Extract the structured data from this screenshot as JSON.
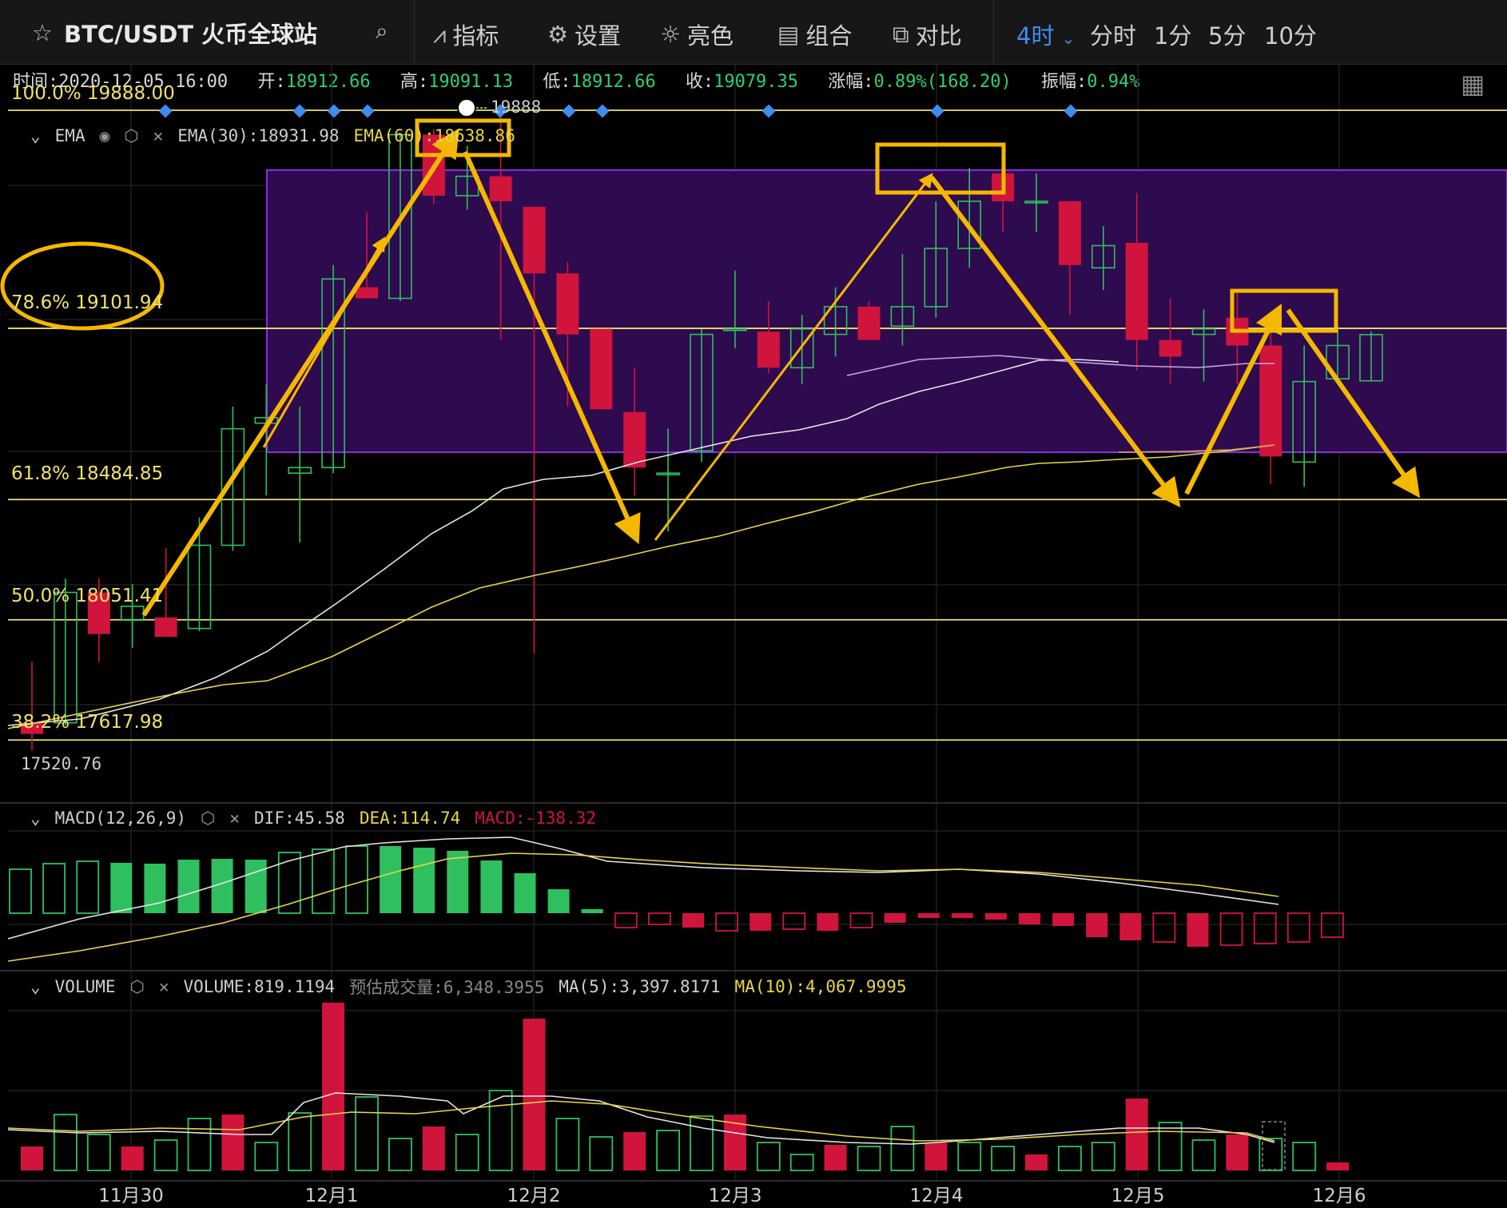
{
  "toolbar": {
    "symbol": "BTC/USDT 火币全球站",
    "star_icon": "star-icon",
    "search_icon": "search-icon",
    "indicators": "指标",
    "settings": "设置",
    "theme": "亮色",
    "combo": "组合",
    "compare": "对比",
    "timeframes": [
      "4时",
      "分时",
      "1分",
      "5分",
      "10分"
    ],
    "active_timeframe": "4时"
  },
  "info": {
    "time_label": "时间:",
    "time": "2020-12-05 16:00",
    "open_label": "开:",
    "open": "18912.66",
    "high_label": "高:",
    "high": "19091.13",
    "low_label": "低:",
    "low": "18912.66",
    "close_label": "收:",
    "close": "19079.35",
    "change_label": "涨幅:",
    "change": "0.89%(168.20)",
    "amp_label": "振幅:",
    "amp": "0.94%"
  },
  "ema": {
    "name": "EMA",
    "ema30": "EMA(30):18931.98",
    "ema60": "EMA(60):18638.86"
  },
  "fib": {
    "f100": "100.0% 19888.00",
    "f786": "78.6% 19101.94",
    "f618": "61.8% 18484.85",
    "f50": "50.0% 18051.41",
    "f382": "38.2% 17617.98"
  },
  "marker": {
    "high_marker": "19888",
    "low_price": "17520.76"
  },
  "macd": {
    "name": "MACD(12,26,9)",
    "dif": "DIF:45.58",
    "dea": "DEA:114.74",
    "macd": "MACD:-138.32"
  },
  "volume": {
    "name": "VOLUME",
    "volume": "VOLUME:819.1194",
    "estimate": "预估成交量:6,348.3955",
    "ma5": "MA(5):3,397.8171",
    "ma10": "MA(10):4,067.9995"
  },
  "xaxis": [
    "11月30",
    "12月1",
    "12月2",
    "12月3",
    "12月4",
    "12月5",
    "12月6"
  ],
  "colors": {
    "up": "#2fbf5f",
    "down": "#d0143c",
    "fib": "#f0e36a",
    "arrow": "#f5b800",
    "box": "#3a0d5e",
    "accent": "#3f8cf0"
  },
  "chart_data": {
    "type": "candlestick",
    "price_range": [
      17520.76,
      19888.0
    ],
    "candles": [
      {
        "o": 17680,
        "h": 17900,
        "l": 17580,
        "c": 17640
      },
      {
        "o": 17680,
        "h": 18200,
        "l": 17670,
        "c": 18150
      },
      {
        "o": 18150,
        "h": 18200,
        "l": 17900,
        "c": 18000
      },
      {
        "o": 18050,
        "h": 18180,
        "l": 17950,
        "c": 18100
      },
      {
        "o": 18060,
        "h": 18310,
        "l": 17990,
        "c": 17990
      },
      {
        "o": 18020,
        "h": 18420,
        "l": 18010,
        "c": 18320
      },
      {
        "o": 18320,
        "h": 18820,
        "l": 18300,
        "c": 18740
      },
      {
        "o": 18760,
        "h": 18900,
        "l": 18500,
        "c": 18780
      },
      {
        "o": 18580,
        "h": 18820,
        "l": 18330,
        "c": 18600
      },
      {
        "o": 18600,
        "h": 19330,
        "l": 18580,
        "c": 19280
      },
      {
        "o": 19250,
        "h": 19520,
        "l": 19210,
        "c": 19210
      },
      {
        "o": 19210,
        "h": 19800,
        "l": 19200,
        "c": 19800
      },
      {
        "o": 19800,
        "h": 19820,
        "l": 19550,
        "c": 19580
      },
      {
        "o": 19580,
        "h": 19760,
        "l": 19530,
        "c": 19650
      },
      {
        "o": 19650,
        "h": 19880,
        "l": 19060,
        "c": 19560
      },
      {
        "o": 19540,
        "h": 19540,
        "l": 17930,
        "c": 19300
      },
      {
        "o": 19300,
        "h": 19340,
        "l": 18820,
        "c": 19080
      },
      {
        "o": 19100,
        "h": 19100,
        "l": 18810,
        "c": 18810
      },
      {
        "o": 18800,
        "h": 18960,
        "l": 18500,
        "c": 18600
      },
      {
        "o": 18580,
        "h": 18740,
        "l": 18370,
        "c": 18580
      },
      {
        "o": 18660,
        "h": 19100,
        "l": 18620,
        "c": 19080
      },
      {
        "o": 19100,
        "h": 19310,
        "l": 19030,
        "c": 19100
      },
      {
        "o": 19090,
        "h": 19200,
        "l": 18940,
        "c": 18960
      },
      {
        "o": 18960,
        "h": 19150,
        "l": 18900,
        "c": 19100
      },
      {
        "o": 19080,
        "h": 19250,
        "l": 19000,
        "c": 19180
      },
      {
        "o": 19180,
        "h": 19200,
        "l": 19060,
        "c": 19060
      },
      {
        "o": 19110,
        "h": 19370,
        "l": 19040,
        "c": 19180
      },
      {
        "o": 19180,
        "h": 19560,
        "l": 19140,
        "c": 19390
      },
      {
        "o": 19390,
        "h": 19680,
        "l": 19320,
        "c": 19560
      },
      {
        "o": 19660,
        "h": 19680,
        "l": 19450,
        "c": 19560
      },
      {
        "o": 19560,
        "h": 19660,
        "l": 19450,
        "c": 19560
      },
      {
        "o": 19560,
        "h": 19560,
        "l": 19150,
        "c": 19330
      },
      {
        "o": 19320,
        "h": 19470,
        "l": 19240,
        "c": 19400
      },
      {
        "o": 19410,
        "h": 19590,
        "l": 18950,
        "c": 19060
      },
      {
        "o": 19060,
        "h": 19210,
        "l": 18900,
        "c": 19000
      },
      {
        "o": 19080,
        "h": 19170,
        "l": 18910,
        "c": 19100
      },
      {
        "o": 19140,
        "h": 19230,
        "l": 18900,
        "c": 19040
      },
      {
        "o": 19040,
        "h": 19160,
        "l": 18540,
        "c": 18640
      },
      {
        "o": 18620,
        "h": 19040,
        "l": 18530,
        "c": 18910
      },
      {
        "o": 18920,
        "h": 19110,
        "l": 18900,
        "c": 19040
      },
      {
        "o": 18912.66,
        "h": 19091.13,
        "l": 18912.66,
        "c": 19079.35
      }
    ]
  }
}
